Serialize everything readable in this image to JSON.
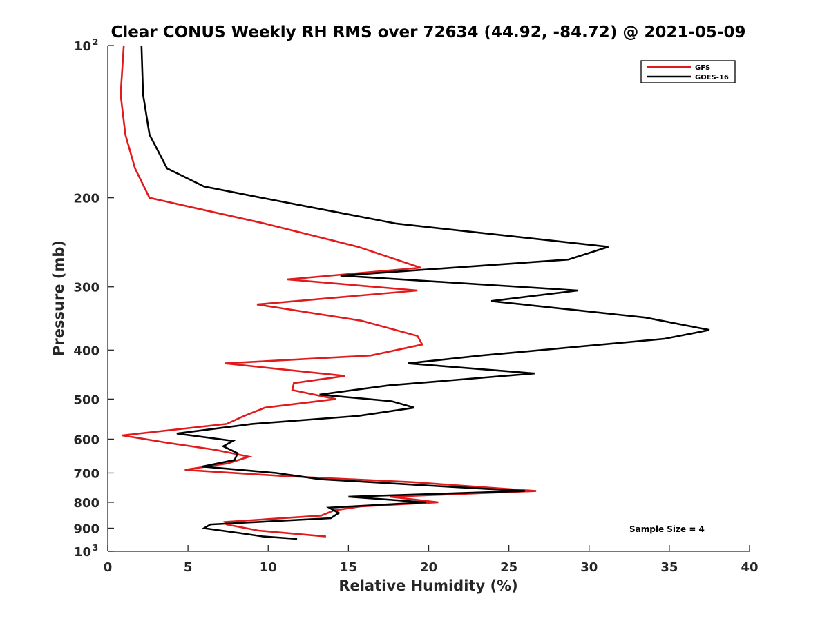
{
  "chart_data": {
    "type": "line",
    "title": "Clear CONUS Weekly RH RMS over 72634 (44.92, -84.72) @ 2021-05-09",
    "xlabel": "Relative Humidity (%)",
    "ylabel": "Pressure (mb)",
    "xlim": [
      0,
      40
    ],
    "ylim": [
      100,
      1000
    ],
    "yscale": "log",
    "y_reversed": true,
    "x_ticks": [
      0,
      5,
      10,
      15,
      20,
      25,
      30,
      35,
      40
    ],
    "x_tick_labels": [
      "0",
      "5",
      "10",
      "15",
      "20",
      "25",
      "30",
      "35",
      "40"
    ],
    "y_ticks": [
      100,
      200,
      300,
      400,
      500,
      600,
      700,
      800,
      900,
      1000
    ],
    "y_tick_labels": [
      {
        "base": "10",
        "exp": "2"
      },
      {
        "base": "200",
        "exp": ""
      },
      {
        "base": "300",
        "exp": ""
      },
      {
        "base": "400",
        "exp": ""
      },
      {
        "base": "500",
        "exp": ""
      },
      {
        "base": "600",
        "exp": ""
      },
      {
        "base": "700",
        "exp": ""
      },
      {
        "base": "800",
        "exp": ""
      },
      {
        "base": "900",
        "exp": ""
      },
      {
        "base": "10",
        "exp": "3"
      }
    ],
    "legend_position": "top-right",
    "annotation": "Sample Size = 4",
    "series": [
      {
        "name": "GFS",
        "color": "#e31a1c",
        "points": [
          [
            1.0,
            100
          ],
          [
            0.8,
            125
          ],
          [
            1.1,
            150
          ],
          [
            1.7,
            175
          ],
          [
            2.6,
            200
          ],
          [
            9.8,
            225
          ],
          [
            15.6,
            250
          ],
          [
            19.5,
            275
          ],
          [
            11.2,
            290
          ],
          [
            19.3,
            305
          ],
          [
            9.3,
            325
          ],
          [
            15.8,
            350
          ],
          [
            19.3,
            375
          ],
          [
            19.6,
            390
          ],
          [
            16.4,
            410
          ],
          [
            7.3,
            425
          ],
          [
            14.8,
            450
          ],
          [
            11.6,
            465
          ],
          [
            11.5,
            480
          ],
          [
            14.2,
            500
          ],
          [
            9.8,
            520
          ],
          [
            8.5,
            540
          ],
          [
            7.4,
            560
          ],
          [
            0.9,
            590
          ],
          [
            3.7,
            610
          ],
          [
            6.7,
            630
          ],
          [
            8.8,
            650
          ],
          [
            7.5,
            670
          ],
          [
            4.8,
            690
          ],
          [
            11.0,
            710
          ],
          [
            19.0,
            730
          ],
          [
            26.7,
            760
          ],
          [
            17.6,
            780
          ],
          [
            20.6,
            800
          ],
          [
            15.8,
            815
          ],
          [
            14.1,
            830
          ],
          [
            13.3,
            850
          ],
          [
            7.3,
            875
          ],
          [
            7.4,
            885
          ],
          [
            9.4,
            910
          ],
          [
            13.6,
            935
          ]
        ]
      },
      {
        "name": "GOES-16",
        "color": "#000000",
        "points": [
          [
            2.1,
            100
          ],
          [
            2.2,
            125
          ],
          [
            2.6,
            150
          ],
          [
            3.7,
            175
          ],
          [
            6.0,
            190
          ],
          [
            9.6,
            200
          ],
          [
            18.0,
            225
          ],
          [
            31.2,
            250
          ],
          [
            28.7,
            265
          ],
          [
            14.5,
            285
          ],
          [
            29.3,
            305
          ],
          [
            23.9,
            320
          ],
          [
            33.5,
            345
          ],
          [
            37.5,
            365
          ],
          [
            34.7,
            380
          ],
          [
            23.3,
            410
          ],
          [
            18.7,
            425
          ],
          [
            26.6,
            445
          ],
          [
            17.5,
            470
          ],
          [
            13.2,
            490
          ],
          [
            17.7,
            505
          ],
          [
            19.1,
            520
          ],
          [
            15.6,
            540
          ],
          [
            9.0,
            560
          ],
          [
            4.3,
            585
          ],
          [
            7.8,
            605
          ],
          [
            7.2,
            620
          ],
          [
            8.1,
            640
          ],
          [
            7.9,
            660
          ],
          [
            5.9,
            680
          ],
          [
            10.5,
            700
          ],
          [
            13.2,
            720
          ],
          [
            19.5,
            740
          ],
          [
            26.0,
            760
          ],
          [
            15.0,
            780
          ],
          [
            19.8,
            800
          ],
          [
            13.8,
            820
          ],
          [
            14.4,
            840
          ],
          [
            13.9,
            860
          ],
          [
            6.4,
            885
          ],
          [
            6.0,
            900
          ],
          [
            8.2,
            920
          ],
          [
            9.7,
            935
          ],
          [
            11.8,
            945
          ]
        ]
      }
    ]
  }
}
